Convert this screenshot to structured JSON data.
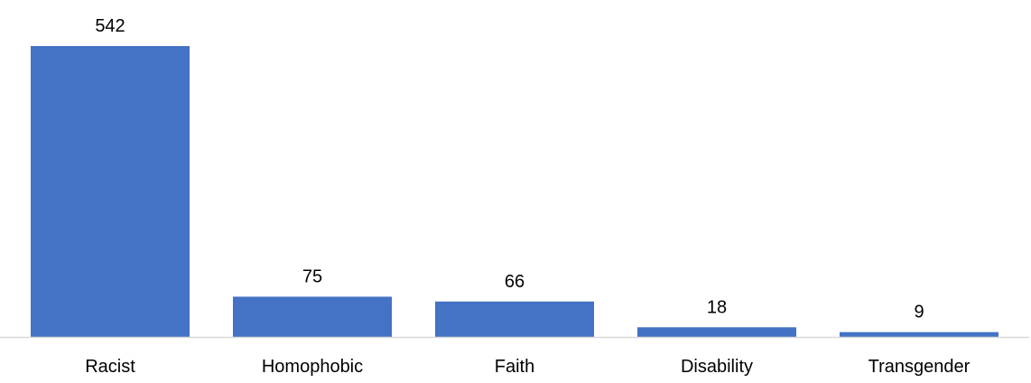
{
  "chart_data": {
    "type": "bar",
    "categories": [
      "Racist",
      "Homophobic",
      "Faith",
      "Disability",
      "Transgender"
    ],
    "values": [
      542,
      75,
      66,
      18,
      9
    ],
    "title": "",
    "xlabel": "",
    "ylabel": "",
    "ylim": [
      0,
      542
    ],
    "grid": false,
    "legend": "none",
    "data_labels": true,
    "bar_color": "#4472C4",
    "axis_color": "#D9D9D9"
  }
}
